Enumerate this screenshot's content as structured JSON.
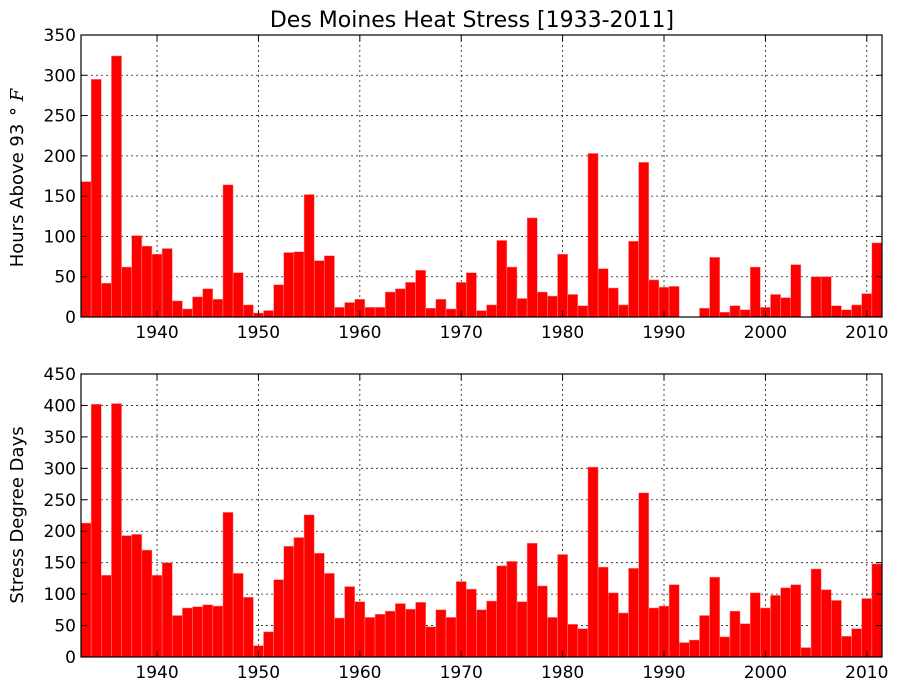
{
  "title": "Des Moines Heat Stress [1933-2011]",
  "colors": {
    "bar": "#ff0000",
    "background": "#ffffff"
  },
  "chart_data": [
    {
      "type": "bar",
      "name": "hours-above-93",
      "ylabel_main": "Hours Above 93",
      "ylabel_math": "° F",
      "xlim": [
        1932.5,
        2011.5
      ],
      "ylim": [
        0,
        350
      ],
      "xticks": [
        1940,
        1950,
        1960,
        1970,
        1980,
        1990,
        2000,
        2010
      ],
      "yticks": [
        0,
        50,
        100,
        150,
        200,
        250,
        300,
        350
      ],
      "grid": true,
      "x": [
        1933,
        1934,
        1935,
        1936,
        1937,
        1938,
        1939,
        1940,
        1941,
        1942,
        1943,
        1944,
        1945,
        1946,
        1947,
        1948,
        1949,
        1950,
        1951,
        1952,
        1953,
        1954,
        1955,
        1956,
        1957,
        1958,
        1959,
        1960,
        1961,
        1962,
        1963,
        1964,
        1965,
        1966,
        1967,
        1968,
        1969,
        1970,
        1971,
        1972,
        1973,
        1974,
        1975,
        1976,
        1977,
        1978,
        1979,
        1980,
        1981,
        1982,
        1983,
        1984,
        1985,
        1986,
        1987,
        1988,
        1989,
        1990,
        1991,
        1992,
        1993,
        1994,
        1995,
        1996,
        1997,
        1998,
        1999,
        2000,
        2001,
        2002,
        2003,
        2004,
        2005,
        2006,
        2007,
        2008,
        2009,
        2010,
        2011
      ],
      "values": [
        168,
        295,
        42,
        324,
        62,
        101,
        88,
        78,
        85,
        20,
        10,
        25,
        35,
        22,
        164,
        55,
        15,
        5,
        8,
        40,
        80,
        81,
        152,
        70,
        76,
        12,
        18,
        22,
        12,
        12,
        31,
        35,
        43,
        58,
        11,
        22,
        10,
        43,
        55,
        8,
        15,
        95,
        62,
        23,
        123,
        31,
        26,
        78,
        28,
        14,
        203,
        60,
        36,
        15,
        94,
        192,
        46,
        37,
        38,
        0,
        0,
        11,
        74,
        6,
        14,
        9,
        62,
        12,
        28,
        24,
        65,
        0,
        50,
        50,
        14,
        9,
        15,
        29,
        92
      ]
    },
    {
      "type": "bar",
      "name": "stress-degree-days",
      "ylabel_main": "Stress Degree Days",
      "xlim": [
        1932.5,
        2011.5
      ],
      "ylim": [
        0,
        450
      ],
      "xticks": [
        1940,
        1950,
        1960,
        1970,
        1980,
        1990,
        2000,
        2010
      ],
      "yticks": [
        0,
        50,
        100,
        150,
        200,
        250,
        300,
        350,
        400,
        450
      ],
      "grid": true,
      "x": [
        1933,
        1934,
        1935,
        1936,
        1937,
        1938,
        1939,
        1940,
        1941,
        1942,
        1943,
        1944,
        1945,
        1946,
        1947,
        1948,
        1949,
        1950,
        1951,
        1952,
        1953,
        1954,
        1955,
        1956,
        1957,
        1958,
        1959,
        1960,
        1961,
        1962,
        1963,
        1964,
        1965,
        1966,
        1967,
        1968,
        1969,
        1970,
        1971,
        1972,
        1973,
        1974,
        1975,
        1976,
        1977,
        1978,
        1979,
        1980,
        1981,
        1982,
        1983,
        1984,
        1985,
        1986,
        1987,
        1988,
        1989,
        1990,
        1991,
        1992,
        1993,
        1994,
        1995,
        1996,
        1997,
        1998,
        1999,
        2000,
        2001,
        2002,
        2003,
        2004,
        2005,
        2006,
        2007,
        2008,
        2009,
        2010,
        2011
      ],
      "values": [
        213,
        402,
        130,
        403,
        193,
        195,
        170,
        130,
        150,
        66,
        78,
        80,
        83,
        81,
        230,
        133,
        95,
        18,
        40,
        123,
        176,
        190,
        226,
        165,
        133,
        62,
        112,
        88,
        63,
        68,
        73,
        85,
        76,
        87,
        48,
        75,
        63,
        120,
        108,
        75,
        89,
        145,
        152,
        88,
        181,
        113,
        63,
        163,
        52,
        45,
        302,
        143,
        102,
        70,
        141,
        261,
        78,
        81,
        115,
        23,
        27,
        66,
        127,
        32,
        73,
        53,
        102,
        78,
        98,
        110,
        115,
        15,
        140,
        107,
        90,
        33,
        45,
        93,
        148
      ]
    }
  ]
}
